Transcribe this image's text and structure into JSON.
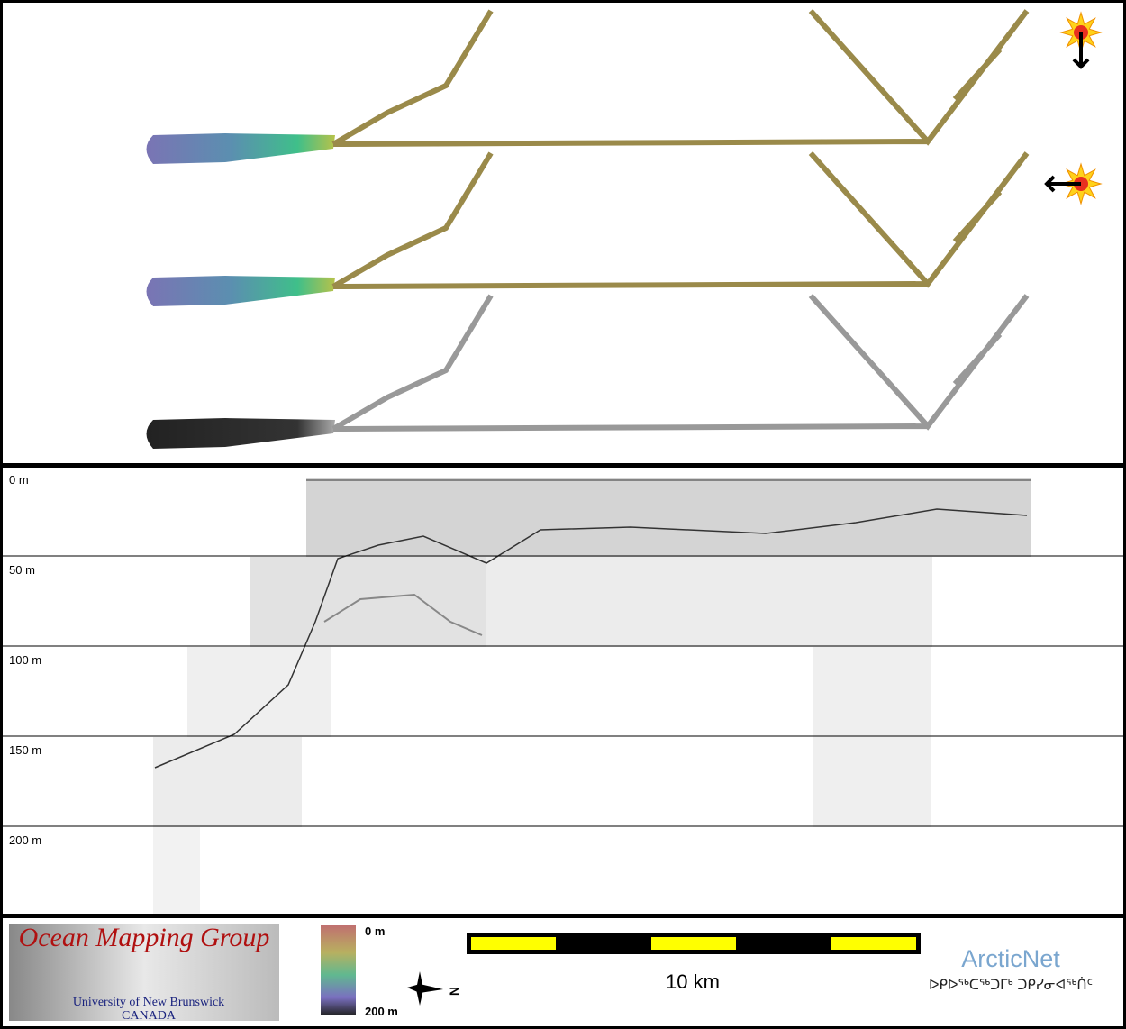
{
  "profile": {
    "depth_labels": [
      "0 m",
      "50 m",
      "100 m",
      "150 m",
      "200 m"
    ]
  },
  "footer": {
    "logo": {
      "title": "Ocean Mapping Group",
      "university": "University of New Brunswick",
      "country": "CANADA"
    },
    "colorbar": {
      "top_label": "0 m",
      "bottom_label": "200 m"
    },
    "compass": {
      "label": "N"
    },
    "scale_bar": {
      "label": "10 km"
    },
    "arcticnet": {
      "name": "ArcticNet",
      "inuktitut": "ᐅᑭᐅᖅᑕᖅᑐᒥᒃ ᑐᑭᓯᓂᐊᖅᑏᑦ"
    }
  }
}
